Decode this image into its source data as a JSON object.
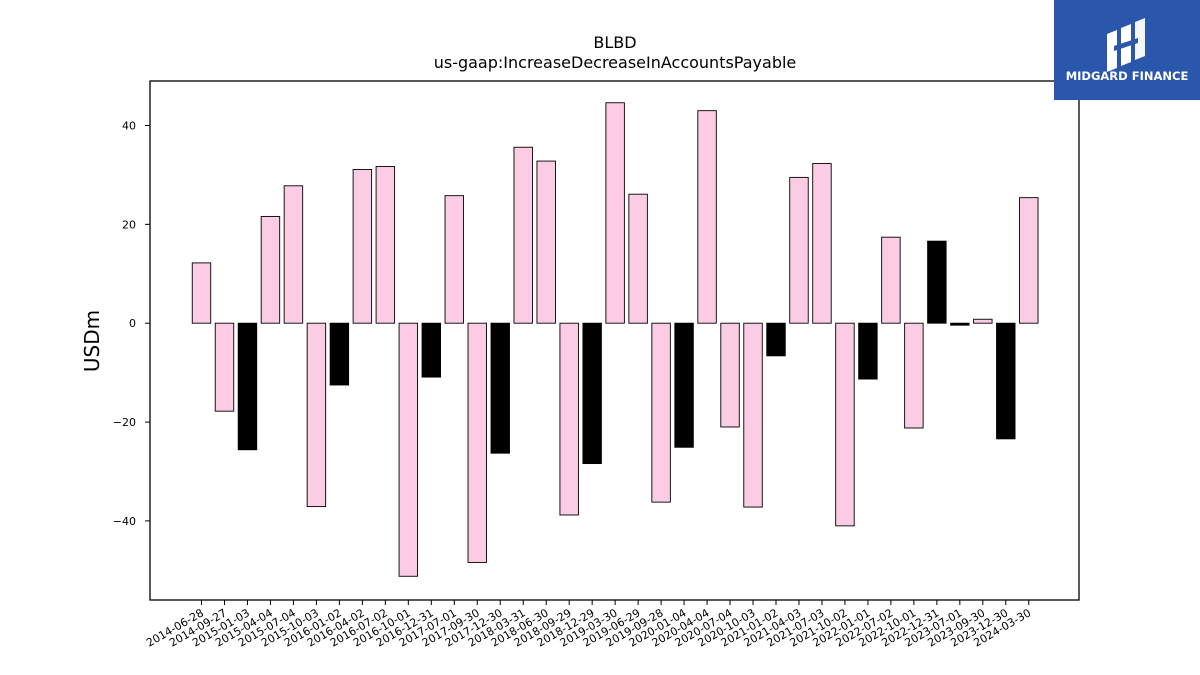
{
  "logo": {
    "text": "MIDGARD FINANCE",
    "background": "#2a56ab"
  },
  "chart_data": {
    "type": "bar",
    "title": "BLBD",
    "subtitle": "us-gaap:IncreaseDecreaseInAccountsPayable",
    "xlabel": "",
    "ylabel": "USDm",
    "ylim": [
      -56,
      49
    ],
    "yticks": [
      -40,
      -20,
      0,
      20,
      40
    ],
    "ytick_labels": [
      "−40",
      "−20",
      "0",
      "20",
      "40"
    ],
    "grid": false,
    "legend": "none",
    "colors": {
      "pink": "#fbcce4",
      "black": "#000000",
      "edge": "#000000"
    },
    "categories": [
      "2014-06-28",
      "2014-09-27",
      "2015-01-03",
      "2015-04-04",
      "2015-07-04",
      "2015-10-03",
      "2016-01-02",
      "2016-04-02",
      "2016-07-02",
      "2016-10-01",
      "2016-12-31",
      "2017-07-01",
      "2017-09-30",
      "2017-12-30",
      "2018-03-31",
      "2018-06-30",
      "2018-09-29",
      "2018-12-29",
      "2019-03-30",
      "2019-06-29",
      "2019-09-28",
      "2020-01-04",
      "2020-04-04",
      "2020-07-04",
      "2020-10-03",
      "2021-01-02",
      "2021-04-03",
      "2021-07-03",
      "2021-10-02",
      "2022-01-01",
      "2022-07-02",
      "2022-10-01",
      "2022-12-31",
      "2023-07-01",
      "2023-09-30",
      "2023-12-30",
      "2024-03-30"
    ],
    "values": [
      12.2,
      -17.8,
      -25.6,
      21.6,
      27.8,
      -37.1,
      -12.5,
      31.1,
      31.7,
      -51.2,
      -10.9,
      25.8,
      -48.4,
      -26.3,
      35.6,
      32.8,
      -38.8,
      -28.4,
      44.6,
      26.1,
      -36.2,
      -25.1,
      43.0,
      -21.0,
      -37.2,
      -6.6,
      29.5,
      32.3,
      -41.0,
      -11.3,
      17.4,
      -21.2,
      16.6,
      -0.4,
      0.8,
      -23.4,
      25.4
    ],
    "bar_colors": [
      "pink",
      "pink",
      "black",
      "pink",
      "pink",
      "pink",
      "black",
      "pink",
      "pink",
      "pink",
      "black",
      "pink",
      "pink",
      "black",
      "pink",
      "pink",
      "pink",
      "black",
      "pink",
      "pink",
      "pink",
      "black",
      "pink",
      "pink",
      "pink",
      "black",
      "pink",
      "pink",
      "pink",
      "black",
      "pink",
      "pink",
      "black",
      "black",
      "pink",
      "black",
      "pink"
    ]
  }
}
